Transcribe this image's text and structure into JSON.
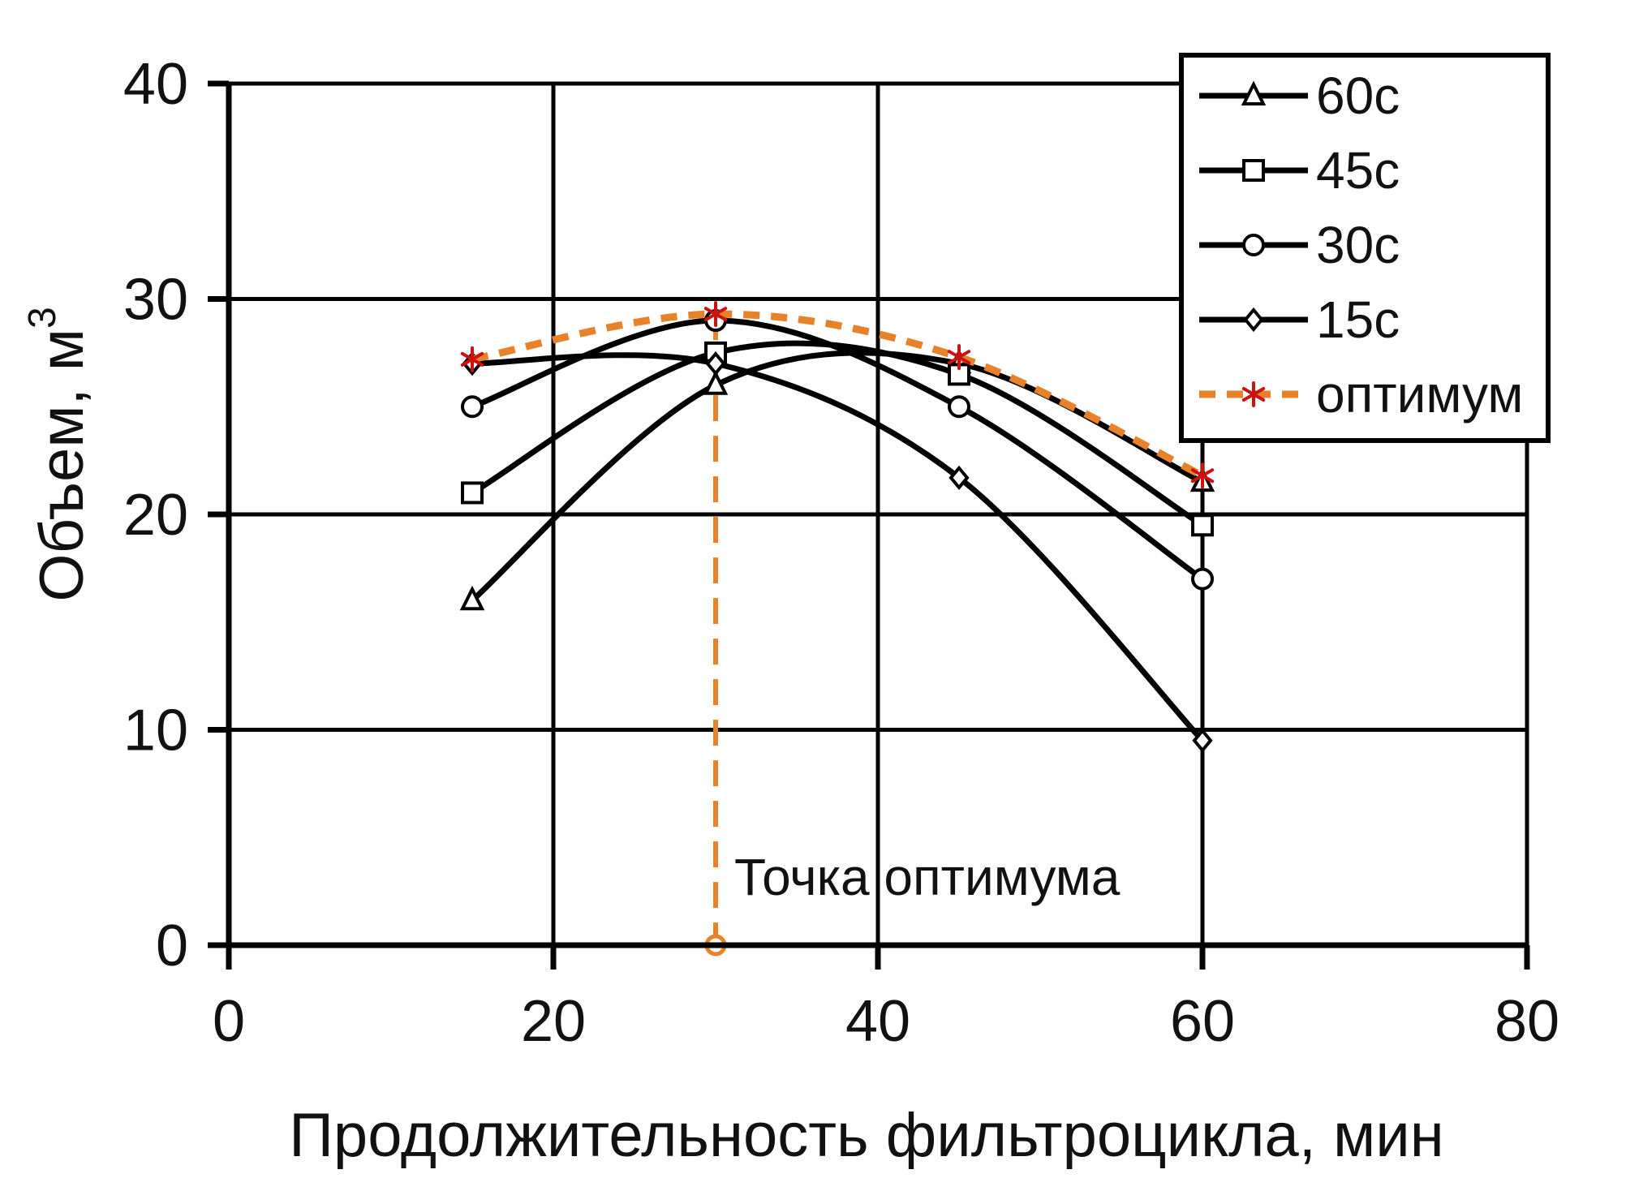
{
  "chart_data": {
    "type": "line",
    "xlabel": "Продолжительность фильтроцикла, мин",
    "ylabel": "Объем, м",
    "ylabel_sup": "3",
    "xlim": [
      0,
      80
    ],
    "ylim": [
      0,
      40
    ],
    "xticks": [
      0,
      20,
      40,
      60,
      80
    ],
    "yticks": [
      0,
      10,
      20,
      30,
      40
    ],
    "grid": true,
    "legend_position": "top-right",
    "x": [
      15,
      30,
      45,
      60
    ],
    "series": [
      {
        "name": "60с",
        "marker": "triangle",
        "color": "#000000",
        "values": [
          16,
          26,
          27,
          21.5
        ]
      },
      {
        "name": "45с",
        "marker": "square",
        "color": "#000000",
        "values": [
          21,
          27.5,
          26.5,
          19.5
        ]
      },
      {
        "name": "30с",
        "marker": "circle",
        "color": "#000000",
        "values": [
          25,
          29,
          25,
          17
        ]
      },
      {
        "name": "15с",
        "marker": "diamond",
        "color": "#000000",
        "values": [
          27,
          27,
          21.7,
          9.5
        ]
      },
      {
        "name": "оптимум",
        "marker": "asterisk",
        "color": "#E8822A",
        "marker_color": "#CC1111",
        "dashed": true,
        "values": [
          27.2,
          29.3,
          27.3,
          21.8
        ]
      }
    ],
    "annotation": {
      "text": "Точка оптимума",
      "x": 30,
      "y_from": 0,
      "y_to": 29.3,
      "color": "#E8822A"
    }
  }
}
